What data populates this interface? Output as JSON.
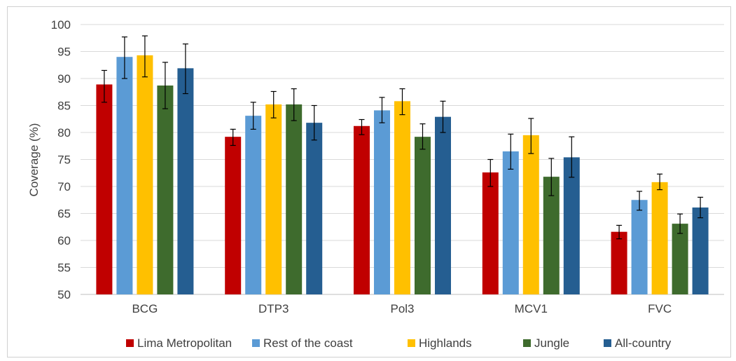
{
  "chart_data": {
    "type": "bar",
    "title": "",
    "xlabel": "",
    "ylabel": "Coverage (%)",
    "ylim": [
      50,
      100
    ],
    "yticks": [
      50,
      55,
      60,
      65,
      70,
      75,
      80,
      85,
      90,
      95,
      100
    ],
    "grid": "horizontal",
    "legend_position": "bottom",
    "error_bars": true,
    "categories": [
      "BCG",
      "DTP3",
      "Pol3",
      "MCV1",
      "FVC"
    ],
    "series": [
      {
        "name": "Lima Metropolitan",
        "color": "#c00000",
        "values": [
          88.9,
          79.2,
          81.2,
          72.6,
          61.6
        ],
        "err_low": [
          85.6,
          77.6,
          79.6,
          70.0,
          60.3
        ],
        "err_high": [
          91.5,
          80.6,
          82.4,
          75.0,
          62.8
        ]
      },
      {
        "name": "Rest of the coast",
        "color": "#5b9bd5",
        "values": [
          94.0,
          83.1,
          84.1,
          76.5,
          67.5
        ],
        "err_low": [
          90.0,
          80.6,
          81.8,
          73.2,
          65.6
        ],
        "err_high": [
          97.7,
          85.6,
          86.5,
          79.7,
          69.1
        ]
      },
      {
        "name": "Highlands",
        "color": "#ffc000",
        "values": [
          94.3,
          85.2,
          85.8,
          79.5,
          70.8
        ],
        "err_low": [
          90.3,
          82.7,
          83.3,
          76.1,
          69.4
        ],
        "err_high": [
          97.9,
          87.6,
          88.1,
          82.6,
          72.3
        ]
      },
      {
        "name": "Jungle",
        "color": "#3e6b2d",
        "values": [
          88.7,
          85.2,
          79.2,
          71.8,
          63.1
        ],
        "err_low": [
          84.4,
          82.2,
          76.9,
          68.3,
          61.3
        ],
        "err_high": [
          93.0,
          88.1,
          81.6,
          75.2,
          64.9
        ]
      },
      {
        "name": "All-country",
        "color": "#255e91",
        "values": [
          91.9,
          81.8,
          82.9,
          75.4,
          66.1
        ],
        "err_low": [
          87.2,
          78.6,
          80.0,
          71.7,
          64.2
        ],
        "err_high": [
          96.4,
          85.0,
          85.8,
          79.2,
          68.0
        ]
      }
    ]
  }
}
